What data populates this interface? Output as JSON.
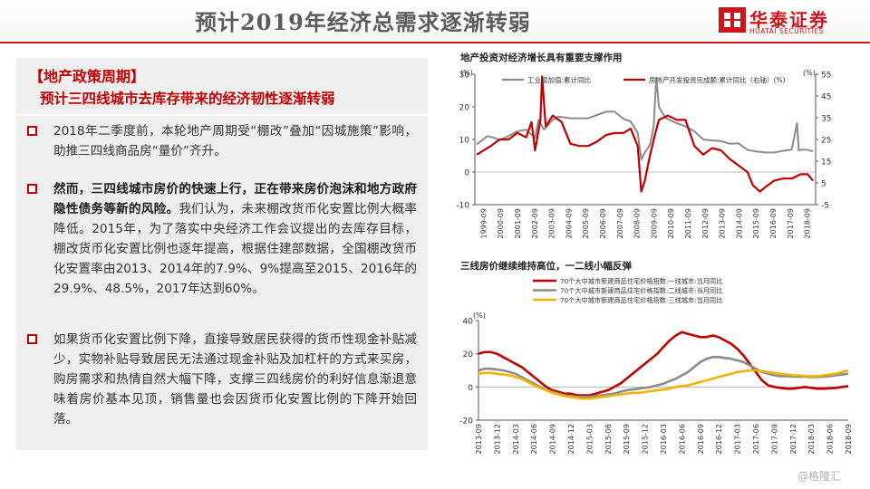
{
  "slide": {
    "title": "预计2019年经济总需求逐渐转弱",
    "brand": {
      "name_cn": "华泰证券",
      "name_en": "HUATAI SECURITIES"
    }
  },
  "policy": {
    "heading": "【地产政策周期】",
    "subheading": "预计三四线城市去库存带来的经济韧性逐渐转弱"
  },
  "bullets": [
    {
      "plain": "2018年二季度前，本轮地产周期受“棚改”叠加“因城施策”影响，助推三四线商品房“量价”齐升。"
    },
    {
      "bold": "然而，三四线城市房价的快速上行，正在带来房价泡沫和地方政府隐性债务等新的风险。",
      "plain": "我们认为，未来棚改货币化安置比例大概率降低。2015年，为了落实中央经济工作会议提出的去库存目标，棚改货币化安置比例也逐年提高，根据住建部数据，全国棚改货币化安置率由2013、2014年的7.9%、9%提高至2015、2016年的29.9%、48.5%，2017年达到60%。"
    },
    {
      "plain": "如果货币化安置比例下降，直接导致居民获得的货币性现金补贴减少，实物补贴导致居民无法通过现金补贴及加杠杆的方式来买房，购房需求和热情自然大幅下降，支撑三四线房价的利好信息渐退意味着房价基本见顶，销售量也会因货币化安置比例的下降开始回落。"
    }
  ],
  "watermark": "@格隆汇",
  "chart_data": [
    {
      "type": "line",
      "title": "地产投资对经济增长具有重要支撑作用",
      "ylabel": "(%)",
      "ylim": [
        -10,
        30
      ],
      "yticks": [
        -10,
        0,
        10,
        20,
        30
      ],
      "y2label": "(%)",
      "y2lim": [
        -5,
        55
      ],
      "y2ticks": [
        -5,
        5,
        15,
        25,
        35,
        45,
        55
      ],
      "x_tick_labels": [
        "1999-09",
        "2000-09",
        "2001-09",
        "2002-09",
        "2003-09",
        "2004-09",
        "2005-09",
        "2006-09",
        "2007-09",
        "2008-09",
        "2009-09",
        "2010-09",
        "2011-09",
        "2012-09",
        "2013-09",
        "2014-09",
        "2015-09",
        "2016-09",
        "2017-09",
        "2018-09"
      ],
      "series": [
        {
          "name": "工业增加值:累计同比",
          "axis": "left",
          "color": "#8c8c8c",
          "x": [
            1999.7,
            2000.3,
            2000.7,
            2001.0,
            2001.4,
            2002.0,
            2002.5,
            2003.0,
            2003.2,
            2003.5,
            2004.0,
            2004.3,
            2005.0,
            2005.5,
            2006.0,
            2006.5,
            2007.0,
            2007.5,
            2008.0,
            2008.4,
            2008.8,
            2009.0,
            2009.2,
            2009.5,
            2009.7,
            2009.85,
            2010.0,
            2010.15,
            2010.4,
            2011.0,
            2011.5,
            2012.0,
            2012.5,
            2013.0,
            2013.5,
            2014.0,
            2014.5,
            2015.0,
            2015.5,
            2016.0,
            2016.5,
            2017.0,
            2017.5,
            2017.8,
            2017.9,
            2018.0,
            2018.3,
            2018.7
          ],
          "y": [
            8.5,
            11.0,
            10.5,
            9.8,
            10.8,
            12.5,
            13.0,
            10.5,
            16.0,
            13.0,
            16.0,
            17.0,
            16.5,
            16.5,
            16.5,
            17.5,
            18.5,
            18.5,
            16.3,
            15.5,
            12.0,
            3.8,
            6.0,
            8.5,
            14.0,
            29.0,
            20.0,
            18.5,
            16.5,
            15.0,
            14.0,
            12.5,
            10.0,
            9.7,
            9.5,
            8.7,
            8.8,
            6.8,
            6.3,
            6.0,
            6.0,
            6.5,
            6.9,
            15.0,
            6.6,
            6.8,
            6.9,
            6.4
          ]
        },
        {
          "name": "房地产开发投资完成额:累计同比（右轴）",
          "axis": "right",
          "color": "#c00000",
          "x": [
            1999.7,
            2000.5,
            2001.0,
            2001.5,
            2002.0,
            2002.5,
            2002.8,
            2003.0,
            2003.3,
            2003.4,
            2003.6,
            2004.0,
            2004.5,
            2005.0,
            2005.5,
            2006.0,
            2006.5,
            2007.0,
            2007.5,
            2008.0,
            2008.4,
            2008.8,
            2009.0,
            2009.2,
            2009.5,
            2009.8,
            2010.0,
            2010.5,
            2011.0,
            2011.5,
            2012.0,
            2012.5,
            2013.0,
            2013.5,
            2014.0,
            2014.5,
            2015.0,
            2015.3,
            2015.7,
            2016.0,
            2016.5,
            2017.0,
            2017.5,
            2018.0,
            2018.4,
            2018.7
          ],
          "y": [
            18,
            22,
            25,
            25,
            28,
            26,
            33,
            20,
            34,
            54,
            31,
            36,
            33,
            23,
            22,
            22,
            24,
            27,
            28,
            28,
            30,
            22,
            1,
            6,
            18,
            28,
            34,
            36,
            34,
            34,
            22,
            18,
            21,
            20,
            16,
            13,
            10,
            4,
            1,
            3,
            6,
            7,
            7,
            9,
            9,
            6
          ]
        }
      ]
    },
    {
      "type": "line",
      "title": "三线房价继续维持高位，一二线小幅反弹",
      "ylabel": "(%)",
      "ylim": [
        -20,
        40
      ],
      "yticks": [
        -20,
        0,
        20,
        40
      ],
      "x_tick_labels": [
        "2013-09",
        "2013-12",
        "2014-03",
        "2014-06",
        "2014-09",
        "2014-12",
        "2015-03",
        "2015-06",
        "2015-09",
        "2015-12",
        "2016-03",
        "2016-06",
        "2016-09",
        "2016-12",
        "2017-03",
        "2017-06",
        "2017-09",
        "2017-12",
        "2018-03",
        "2018-06",
        "2018-09"
      ],
      "x": [
        "2013-09",
        "2013-10",
        "2013-11",
        "2013-12",
        "2014-01",
        "2014-02",
        "2014-03",
        "2014-04",
        "2014-05",
        "2014-06",
        "2014-07",
        "2014-08",
        "2014-09",
        "2014-10",
        "2014-11",
        "2014-12",
        "2015-01",
        "2015-02",
        "2015-03",
        "2015-04",
        "2015-05",
        "2015-06",
        "2015-07",
        "2015-08",
        "2015-09",
        "2015-10",
        "2015-11",
        "2015-12",
        "2016-01",
        "2016-02",
        "2016-03",
        "2016-04",
        "2016-05",
        "2016-06",
        "2016-07",
        "2016-08",
        "2016-09",
        "2016-10",
        "2016-11",
        "2016-12",
        "2017-01",
        "2017-02",
        "2017-03",
        "2017-04",
        "2017-05",
        "2017-06",
        "2017-07",
        "2017-08",
        "2017-09",
        "2017-10",
        "2017-11",
        "2017-12",
        "2018-01",
        "2018-02",
        "2018-03",
        "2018-04",
        "2018-05",
        "2018-06",
        "2018-07",
        "2018-08",
        "2018-09"
      ],
      "series": [
        {
          "name": "70个大中城市新建商品住宅价格指数:一线城市:当月同比",
          "color": "#c00000",
          "values": [
            20,
            21,
            21,
            20,
            18,
            16,
            14,
            12,
            9,
            6,
            3,
            0,
            -2,
            -3,
            -4,
            -4,
            -5,
            -5,
            -5,
            -4,
            -3,
            -2,
            0,
            2,
            5,
            8,
            11,
            14,
            17,
            20,
            24,
            28,
            31,
            33,
            32,
            31,
            30,
            30,
            31,
            30,
            28,
            26,
            23,
            19,
            14,
            9,
            4,
            1,
            0,
            -0.5,
            -1,
            -1,
            -0.5,
            0,
            -0.5,
            -1,
            -1,
            -0.8,
            -0.5,
            0,
            0.5
          ]
        },
        {
          "name": "70个大中城市新建商品住宅价格指数:二线城市:当月同比",
          "color": "#8c8c8c",
          "values": [
            10,
            11,
            11,
            10.5,
            10,
            9,
            8,
            6,
            4,
            2,
            0,
            -2,
            -3,
            -4,
            -5,
            -5.5,
            -6,
            -6,
            -6,
            -5.5,
            -5,
            -4.5,
            -4,
            -3,
            -2,
            -1.5,
            -1,
            -0.5,
            0,
            1,
            2,
            3.5,
            5,
            7,
            9,
            12,
            15,
            17,
            18,
            18,
            17.5,
            17,
            16,
            15,
            13,
            11,
            9,
            8,
            7,
            6.5,
            6.5,
            6.3,
            6.2,
            6.2,
            6,
            6,
            6.2,
            6.5,
            7,
            7.5,
            8
          ]
        },
        {
          "name": "70个大中城市新建商品住宅价格指数:三线城市:当月同比",
          "color": "#f0b400",
          "values": [
            8,
            8.5,
            8.5,
            8,
            7.5,
            7,
            6,
            5,
            3,
            1,
            -0.5,
            -2,
            -3.5,
            -4.5,
            -5.5,
            -6,
            -6.5,
            -7,
            -7,
            -6.5,
            -6,
            -5.5,
            -5,
            -4.5,
            -4,
            -3.5,
            -3.5,
            -3,
            -2.5,
            -2,
            -1.5,
            -1,
            0,
            0.5,
            1,
            2,
            3,
            4,
            5,
            6,
            7,
            8,
            9,
            9.5,
            10,
            10,
            9.5,
            9,
            8.5,
            8,
            7.5,
            7,
            7,
            6.5,
            6.5,
            6.5,
            7,
            7.5,
            8,
            9,
            10
          ]
        }
      ]
    }
  ]
}
